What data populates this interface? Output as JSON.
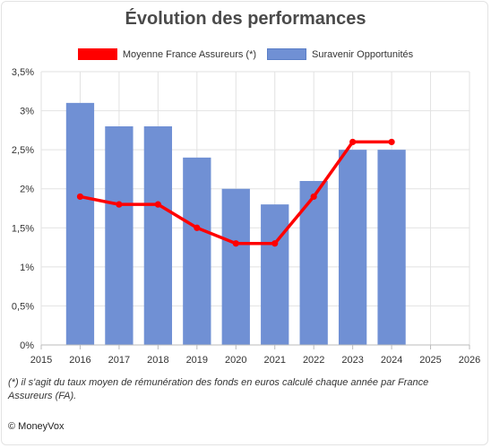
{
  "chart_data": {
    "type": "bar",
    "title": "Évolution des performances",
    "x_ticks": [
      2015,
      2016,
      2017,
      2018,
      2019,
      2020,
      2021,
      2022,
      2023,
      2024,
      2025,
      2026
    ],
    "xlim": [
      2015,
      2026
    ],
    "ylim": [
      0,
      3.5
    ],
    "y_ticks": [
      0,
      0.5,
      1,
      1.5,
      2,
      2.5,
      3,
      3.5
    ],
    "y_tick_labels": [
      "0%",
      "0,5%",
      "1%",
      "1,5%",
      "2%",
      "2,5%",
      "3%",
      "3,5%"
    ],
    "grid": true,
    "legend_position": "top",
    "series": [
      {
        "name": "Moyenne France Assureurs (*)",
        "type": "line",
        "color": "#ff0000",
        "x": [
          2016,
          2017,
          2018,
          2019,
          2020,
          2021,
          2022,
          2023,
          2024
        ],
        "values": [
          1.9,
          1.8,
          1.8,
          1.5,
          1.3,
          1.3,
          1.9,
          2.6,
          2.6
        ]
      },
      {
        "name": "Suravenir Opportunités",
        "type": "bar",
        "color": "#7090d4",
        "x": [
          2016,
          2017,
          2018,
          2019,
          2020,
          2021,
          2022,
          2023,
          2024
        ],
        "values": [
          3.1,
          2.8,
          2.8,
          2.4,
          2.0,
          1.8,
          2.1,
          2.5,
          2.5
        ]
      }
    ]
  },
  "footnote": "(*) il s'agit du taux moyen de rémunération des fonds en euros calculé chaque année par France Assureurs (FA).",
  "brand": "© MoneyVox"
}
